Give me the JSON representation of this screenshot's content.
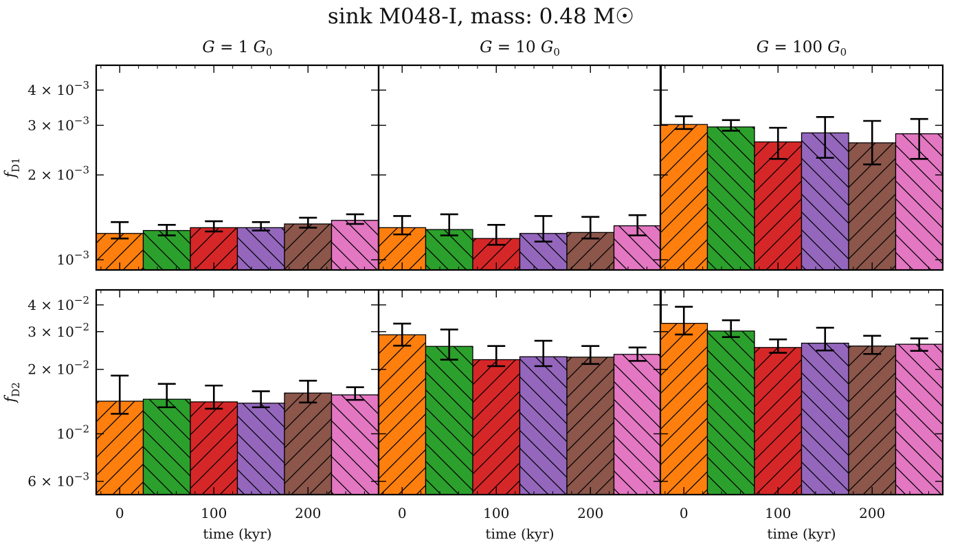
{
  "figure_title": "sink M048-I, mass: 0.48 M☉",
  "colors": {
    "orange": "#ff7f0e",
    "green": "#2ca02c",
    "red": "#d62728",
    "purple": "#9467bd",
    "brown": "#8c564b",
    "pink": "#e377c2"
  },
  "chart_data": {
    "type": "bar",
    "title": "sink M048-I, mass: 0.48 M☉",
    "xlabel": "time (kyr)",
    "x_positions": [
      0,
      50,
      100,
      150,
      200,
      250
    ],
    "bar_width": 50,
    "xlim": [
      -25,
      275
    ],
    "xticks": [
      0,
      100,
      200
    ],
    "xtick_labels": [
      "0",
      "100",
      "200"
    ],
    "yscale": "log",
    "hatches": [
      "/",
      "\\",
      "/",
      "\\",
      "/",
      "\\"
    ],
    "bar_colors": [
      "#ff7f0e",
      "#2ca02c",
      "#d62728",
      "#9467bd",
      "#8c564b",
      "#e377c2"
    ],
    "columns": [
      "G = 1 G0",
      "G = 10 G0",
      "G = 100 G0"
    ],
    "rows": [
      {
        "ylabel": "fD1",
        "ylim": [
          0.00092,
          0.0049
        ],
        "yticks": [
          0.001,
          0.002,
          0.003,
          0.004
        ],
        "ytick_labels": [
          "10^-3",
          "2 × 10^-3",
          "3 × 10^-3",
          "4 × 10^-3"
        ],
        "panels": [
          {
            "values": [
              0.00124,
              0.00127,
              0.0013,
              0.0013,
              0.00134,
              0.00138
            ],
            "err_low": [
              0.00119,
              0.00122,
              0.00126,
              0.00127,
              0.0013,
              0.00134
            ],
            "err_high": [
              0.00136,
              0.00133,
              0.00137,
              0.00136,
              0.00141,
              0.00145
            ]
          },
          {
            "values": [
              0.0013,
              0.00128,
              0.00119,
              0.00124,
              0.00125,
              0.00132
            ],
            "err_low": [
              0.00123,
              0.00122,
              0.00113,
              0.00116,
              0.00119,
              0.00122
            ],
            "err_high": [
              0.00143,
              0.00145,
              0.00133,
              0.00143,
              0.00142,
              0.00144
            ]
          },
          {
            "values": [
              0.00302,
              0.00296,
              0.00262,
              0.00282,
              0.0026,
              0.0028
            ],
            "err_low": [
              0.00291,
              0.00287,
              0.00228,
              0.0023,
              0.00218,
              0.00228
            ],
            "err_high": [
              0.00323,
              0.00313,
              0.00294,
              0.00321,
              0.00311,
              0.00316
            ]
          }
        ]
      },
      {
        "ylabel": "fD2",
        "ylim": [
          0.0052,
          0.047
        ],
        "yticks": [
          0.006,
          0.01,
          0.02,
          0.03,
          0.04
        ],
        "ytick_labels": [
          "6 × 10^-3",
          "10^-2",
          "2 × 10^-2",
          "3 × 10^-2",
          "4 × 10^-2"
        ],
        "panels": [
          {
            "values": [
              0.0142,
              0.0145,
              0.0141,
              0.0139,
              0.0155,
              0.0152
            ],
            "err_low": [
              0.0124,
              0.0133,
              0.0131,
              0.0133,
              0.014,
              0.0144
            ],
            "err_high": [
              0.0187,
              0.0171,
              0.0168,
              0.0158,
              0.0177,
              0.0165
            ]
          },
          {
            "values": [
              0.029,
              0.0256,
              0.0222,
              0.0229,
              0.0228,
              0.0235
            ],
            "err_low": [
              0.0258,
              0.0222,
              0.0207,
              0.0207,
              0.0212,
              0.0219
            ],
            "err_high": [
              0.0327,
              0.0307,
              0.0257,
              0.0272,
              0.0257,
              0.0253
            ]
          },
          {
            "values": [
              0.0328,
              0.0302,
              0.0253,
              0.0265,
              0.0257,
              0.0262
            ],
            "err_low": [
              0.0291,
              0.0283,
              0.0239,
              0.0245,
              0.0236,
              0.0244
            ],
            "err_high": [
              0.0392,
              0.0339,
              0.0276,
              0.0313,
              0.0287,
              0.0279
            ]
          }
        ]
      }
    ]
  }
}
